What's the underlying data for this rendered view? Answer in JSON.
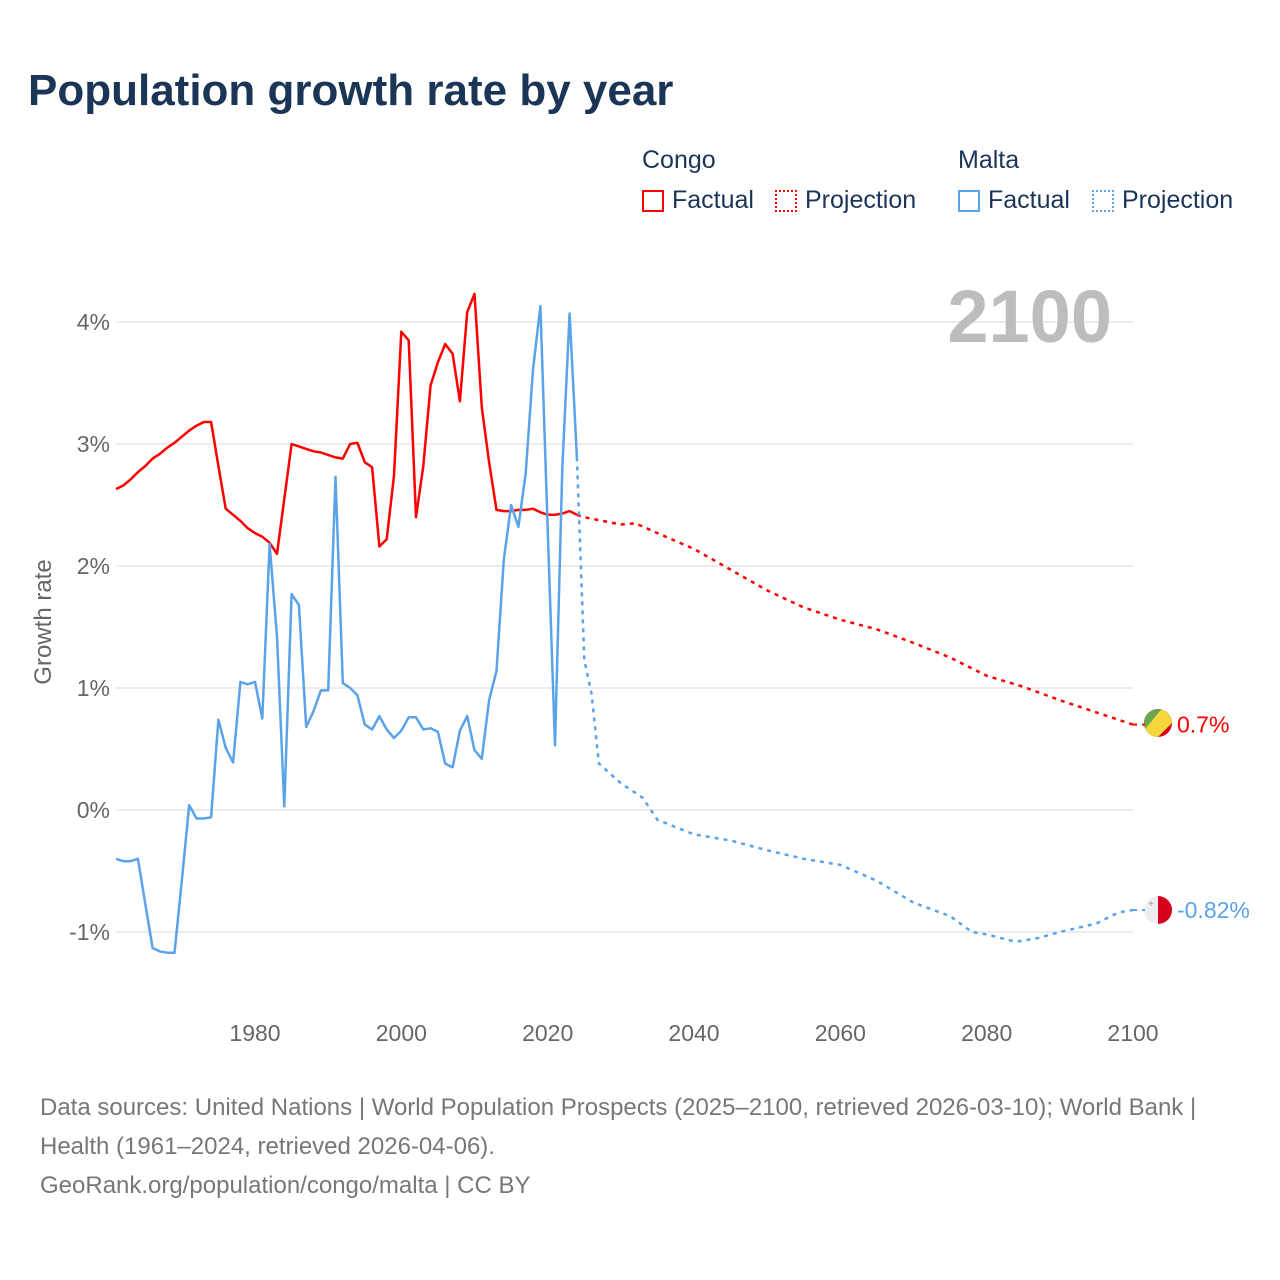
{
  "title": "Population growth rate by year",
  "legend": {
    "groups": [
      {
        "name": "Congo",
        "color": "#ff0000",
        "factual": "Factual",
        "projection": "Projection"
      },
      {
        "name": "Malta",
        "color": "#5ba3e8",
        "factual": "Factual",
        "projection": "Projection"
      }
    ]
  },
  "year_watermark": "2100",
  "footer": {
    "sources": "Data sources: United Nations | World Population Prospects (2025–2100, retrieved 2026-03-10); World Bank | Health (1961–2024, retrieved 2026-04-06).",
    "credit": "GeoRank.org/population/congo/malta | CC BY"
  },
  "chart_data": {
    "type": "line",
    "title": "Population growth rate by year",
    "xlabel": "",
    "ylabel": "Growth rate",
    "xlim": [
      1961,
      2100
    ],
    "ylim": [
      -1.6,
      4.5
    ],
    "x_ticks": [
      1980,
      2000,
      2020,
      2040,
      2060,
      2080,
      2100
    ],
    "y_ticks": [
      -1,
      0,
      1,
      2,
      3,
      4
    ],
    "y_tick_labels": [
      "-1%",
      "0%",
      "1%",
      "2%",
      "3%",
      "4%"
    ],
    "x_tick_labels": [
      "1980",
      "2000",
      "2020",
      "2040",
      "2060",
      "2080",
      "2100"
    ],
    "grid": true,
    "legend_position": "top-right",
    "series": [
      {
        "name": "Congo Factual",
        "country": "Congo",
        "kind": "factual",
        "color": "#ff0000",
        "end_label": null,
        "x": [
          1961,
          1962,
          1963,
          1964,
          1965,
          1966,
          1967,
          1968,
          1969,
          1970,
          1971,
          1972,
          1973,
          1974,
          1975,
          1976,
          1977,
          1978,
          1979,
          1980,
          1981,
          1982,
          1983,
          1984,
          1985,
          1986,
          1987,
          1988,
          1989,
          1990,
          1991,
          1992,
          1993,
          1994,
          1995,
          1996,
          1997,
          1998,
          1999,
          2000,
          2001,
          2002,
          2003,
          2004,
          2005,
          2006,
          2007,
          2008,
          2009,
          2010,
          2011,
          2012,
          2013,
          2014,
          2015,
          2016,
          2017,
          2018,
          2019,
          2020,
          2021,
          2022,
          2023,
          2024
        ],
        "y": [
          2.63,
          2.66,
          2.71,
          2.77,
          2.82,
          2.88,
          2.92,
          2.97,
          3.01,
          3.06,
          3.11,
          3.15,
          3.18,
          3.18,
          2.82,
          2.47,
          2.42,
          2.37,
          2.31,
          2.27,
          2.24,
          2.19,
          2.1,
          2.55,
          3.0,
          2.98,
          2.96,
          2.94,
          2.93,
          2.91,
          2.89,
          2.88,
          3.0,
          3.01,
          2.85,
          2.81,
          2.16,
          2.22,
          2.74,
          3.92,
          3.85,
          2.4,
          2.82,
          3.48,
          3.67,
          3.82,
          3.74,
          3.35,
          4.08,
          4.23,
          3.3,
          2.85,
          2.46,
          2.45,
          2.45,
          2.46,
          2.46,
          2.47,
          2.44,
          2.42,
          2.42,
          2.43,
          2.45,
          2.42
        ]
      },
      {
        "name": "Congo Projection",
        "country": "Congo",
        "kind": "projection",
        "color": "#ff0000",
        "end_label": "0.7%",
        "x": [
          2024,
          2025,
          2030,
          2032,
          2035,
          2040,
          2045,
          2050,
          2055,
          2060,
          2065,
          2070,
          2075,
          2080,
          2085,
          2090,
          2095,
          2100
        ],
        "y": [
          2.42,
          2.4,
          2.34,
          2.35,
          2.27,
          2.14,
          1.97,
          1.8,
          1.66,
          1.56,
          1.48,
          1.37,
          1.25,
          1.1,
          1.01,
          0.9,
          0.8,
          0.7
        ]
      },
      {
        "name": "Malta Factual",
        "country": "Malta",
        "kind": "factual",
        "color": "#5ba3e8",
        "end_label": null,
        "x": [
          1961,
          1962,
          1963,
          1964,
          1965,
          1966,
          1967,
          1968,
          1969,
          1970,
          1971,
          1972,
          1973,
          1974,
          1975,
          1976,
          1977,
          1978,
          1979,
          1980,
          1981,
          1982,
          1983,
          1984,
          1985,
          1986,
          1987,
          1988,
          1989,
          1990,
          1991,
          1992,
          1993,
          1994,
          1995,
          1996,
          1997,
          1998,
          1999,
          2000,
          2001,
          2002,
          2003,
          2004,
          2005,
          2006,
          2007,
          2008,
          2009,
          2010,
          2011,
          2012,
          2013,
          2014,
          2015,
          2016,
          2017,
          2018,
          2019,
          2020,
          2021,
          2022,
          2023,
          2024
        ],
        "y": [
          -0.4,
          -0.42,
          -0.42,
          -0.4,
          -0.77,
          -1.13,
          -1.16,
          -1.17,
          -1.17,
          -0.58,
          0.04,
          -0.07,
          -0.07,
          -0.06,
          0.74,
          0.51,
          0.39,
          1.05,
          1.03,
          1.05,
          0.75,
          2.18,
          1.42,
          0.03,
          1.77,
          1.68,
          0.68,
          0.81,
          0.98,
          0.98,
          2.73,
          1.04,
          1.0,
          0.94,
          0.7,
          0.66,
          0.77,
          0.66,
          0.59,
          0.65,
          0.76,
          0.76,
          0.66,
          0.67,
          0.64,
          0.38,
          0.35,
          0.65,
          0.77,
          0.49,
          0.42,
          0.9,
          1.14,
          2.05,
          2.5,
          2.32,
          2.76,
          3.61,
          4.13,
          2.3,
          0.53,
          2.8,
          4.07,
          2.89
        ]
      },
      {
        "name": "Malta Projection",
        "country": "Malta",
        "kind": "projection",
        "color": "#5ba3e8",
        "end_label": "-0.82%",
        "x": [
          2024,
          2025,
          2026,
          2027,
          2030,
          2033,
          2035,
          2040,
          2045,
          2050,
          2055,
          2060,
          2065,
          2070,
          2075,
          2078,
          2080,
          2084,
          2087,
          2090,
          2095,
          2098,
          2100
        ],
        "y": [
          2.89,
          1.23,
          0.95,
          0.38,
          0.22,
          0.1,
          -0.08,
          -0.2,
          -0.25,
          -0.33,
          -0.4,
          -0.45,
          -0.58,
          -0.76,
          -0.87,
          -1.0,
          -1.02,
          -1.08,
          -1.05,
          -1.0,
          -0.93,
          -0.84,
          -0.82
        ]
      }
    ]
  }
}
